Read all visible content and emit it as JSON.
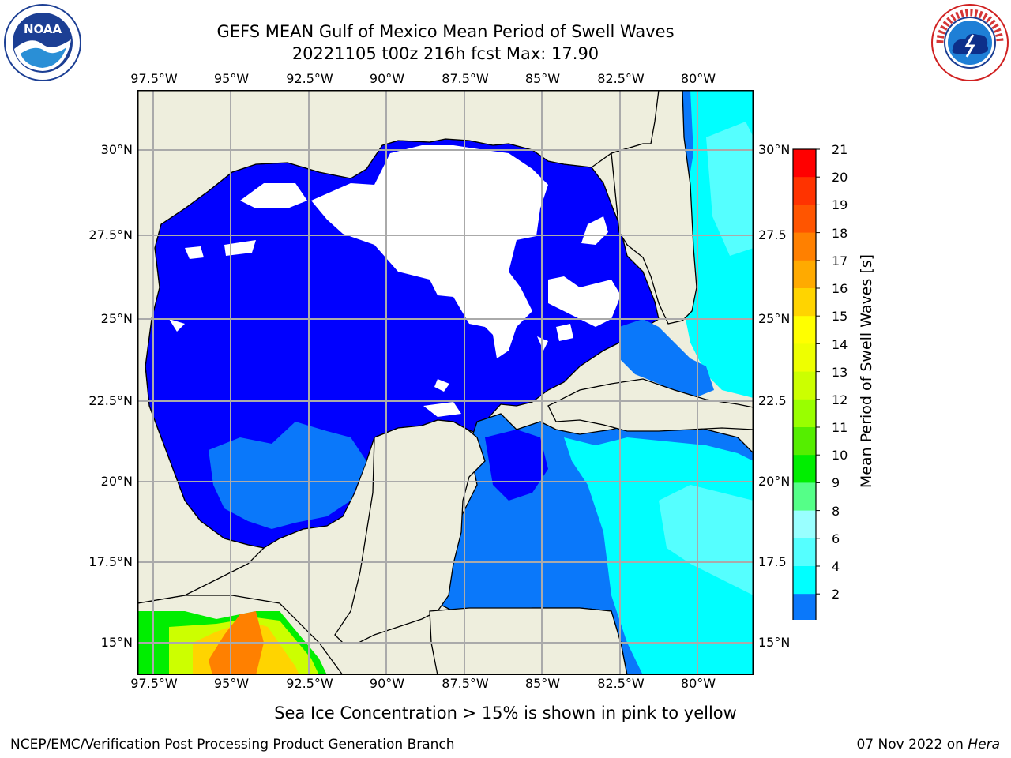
{
  "header": {
    "title_line1": "GEFS MEAN Gulf of Mexico Mean Period of Swell Waves",
    "title_line2": "20221105 t00z 216h fcst   Max: 17.90"
  },
  "logos": {
    "left": "NOAA",
    "right": "NATIONAL WEATHER SERVICE"
  },
  "map": {
    "lon_ticks": [
      "97.5°W",
      "95°W",
      "92.5°W",
      "90°W",
      "87.5°W",
      "85°W",
      "82.5°W",
      "80°W"
    ],
    "lat_ticks_left": [
      "30°N",
      "27.5°N",
      "25°N",
      "22.5°N",
      "20°N",
      "17.5°N",
      "15°N"
    ],
    "lat_ticks_right": [
      "30°N",
      "27.5",
      "25°N",
      "22.5",
      "20°N",
      "17.5",
      "15°N"
    ],
    "colors": {
      "land": "#eeeedd",
      "ocean_2_4": "#0000ff",
      "ocean_4_6": "#0a78fa",
      "ocean_6_8": "#00ffff",
      "ocean_8_9": "#55ffff",
      "nodata": "#ffffff",
      "grid": "#aaaaaa"
    }
  },
  "colorbar": {
    "label": "Mean Period of Swell Waves [s]",
    "ticks": [
      "21",
      "20",
      "19",
      "18",
      "17",
      "16",
      "15",
      "14",
      "13",
      "12",
      "11",
      "10",
      "9",
      "8",
      "6",
      "4",
      "2"
    ],
    "colors": [
      "#ff0000",
      "#ff3300",
      "#ff5500",
      "#ff8000",
      "#ffaa00",
      "#ffd400",
      "#ffff00",
      "#eeff00",
      "#ccff00",
      "#99ff00",
      "#55ee00",
      "#00ee00",
      "#55ff88",
      "#99ffff",
      "#55ffff",
      "#00ffff",
      "#0a78fa",
      "#0000ff"
    ]
  },
  "caption": "Sea Ice Concentration > 15% is shown in pink to yellow",
  "footer": {
    "left": "NCEP/EMC/Verification Post Processing Product Generation Branch",
    "right_prefix": "07 Nov 2022 on ",
    "right_host": "Hera"
  }
}
